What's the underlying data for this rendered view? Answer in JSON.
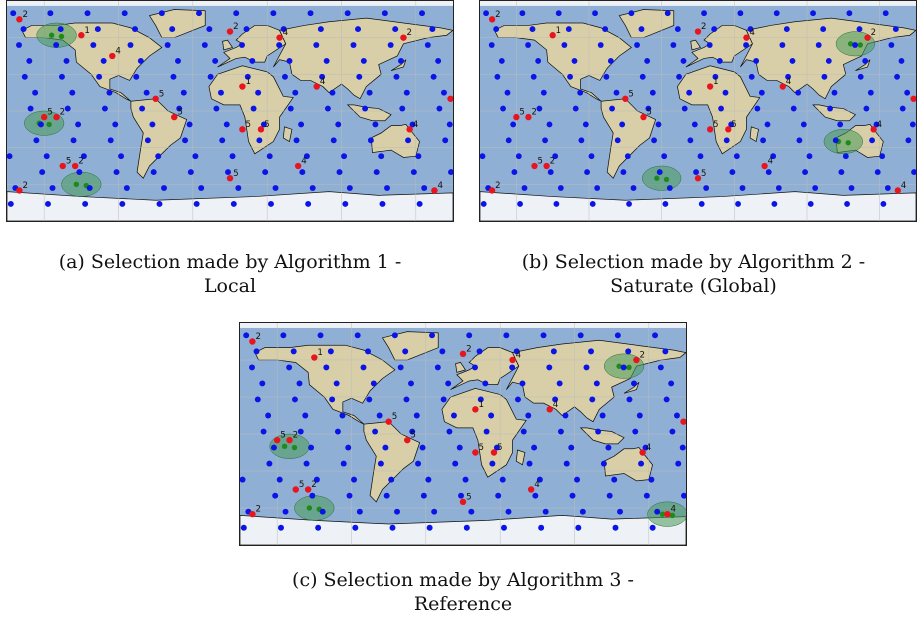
{
  "figure": {
    "panels": [
      {
        "id": "a",
        "caption_line1": "(a) Selection made by Algorithm 1 -",
        "caption_line2": "Local",
        "markers": [
          {
            "lon": -170,
            "lat": 75,
            "label": "2"
          },
          {
            "lon": -120,
            "lat": 62,
            "label": "1"
          },
          {
            "lon": -95,
            "lat": 45,
            "label": "4"
          },
          {
            "lon": -60,
            "lat": 10,
            "label": "5"
          },
          {
            "lon": -45,
            "lat": -5,
            "label": "5"
          },
          {
            "lon": -150,
            "lat": -5,
            "label": "5"
          },
          {
            "lon": -140,
            "lat": -5,
            "label": "2"
          },
          {
            "lon": -135,
            "lat": -45,
            "label": "5"
          },
          {
            "lon": -125,
            "lat": -45,
            "label": "2"
          },
          {
            "lon": -170,
            "lat": -65,
            "label": "2"
          },
          {
            "lon": 0,
            "lat": 65,
            "label": "2"
          },
          {
            "lon": 40,
            "lat": 60,
            "label": "4"
          },
          {
            "lon": 10,
            "lat": 20,
            "label": "1"
          },
          {
            "lon": 10,
            "lat": -15,
            "label": "5"
          },
          {
            "lon": 25,
            "lat": -15,
            "label": "5"
          },
          {
            "lon": 70,
            "lat": 20,
            "label": "4"
          },
          {
            "lon": 140,
            "lat": 60,
            "label": "2"
          },
          {
            "lon": 178,
            "lat": 10,
            "label": "2"
          },
          {
            "lon": 145,
            "lat": -15,
            "label": "4"
          },
          {
            "lon": 55,
            "lat": -45,
            "label": "4"
          },
          {
            "lon": 0,
            "lat": -55,
            "label": "5"
          },
          {
            "lon": 165,
            "lat": -65,
            "label": "4"
          }
        ],
        "green_regions": [
          {
            "lon": -140,
            "lat": 62,
            "label": ""
          },
          {
            "lon": -150,
            "lat": -10,
            "label": ""
          },
          {
            "lon": -120,
            "lat": -60,
            "label": ""
          }
        ]
      },
      {
        "id": "b",
        "caption_line1": "(b) Selection made by Algorithm 2 -",
        "caption_line2": "Saturate (Global)",
        "markers": [
          {
            "lon": -170,
            "lat": 75,
            "label": "2"
          },
          {
            "lon": -120,
            "lat": 62,
            "label": "1"
          },
          {
            "lon": -60,
            "lat": 10,
            "label": "5"
          },
          {
            "lon": -45,
            "lat": -5,
            "label": "5"
          },
          {
            "lon": -150,
            "lat": -5,
            "label": "5"
          },
          {
            "lon": -140,
            "lat": -5,
            "label": "2"
          },
          {
            "lon": -135,
            "lat": -45,
            "label": "5"
          },
          {
            "lon": -125,
            "lat": -45,
            "label": "2"
          },
          {
            "lon": -170,
            "lat": -65,
            "label": "2"
          },
          {
            "lon": 0,
            "lat": 65,
            "label": "2"
          },
          {
            "lon": 40,
            "lat": 60,
            "label": "4"
          },
          {
            "lon": 10,
            "lat": 20,
            "label": "1"
          },
          {
            "lon": 10,
            "lat": -15,
            "label": "5"
          },
          {
            "lon": 25,
            "lat": -15,
            "label": "5"
          },
          {
            "lon": 70,
            "lat": 20,
            "label": "4"
          },
          {
            "lon": 140,
            "lat": 60,
            "label": "2"
          },
          {
            "lon": 178,
            "lat": 10,
            "label": "2"
          },
          {
            "lon": 145,
            "lat": -15,
            "label": "4"
          },
          {
            "lon": 55,
            "lat": -45,
            "label": "4"
          },
          {
            "lon": 0,
            "lat": -55,
            "label": "5"
          },
          {
            "lon": 165,
            "lat": -65,
            "label": "4"
          }
        ],
        "green_regions": [
          {
            "lon": 130,
            "lat": 55,
            "label": ""
          },
          {
            "lon": 120,
            "lat": -25,
            "label": ""
          },
          {
            "lon": -30,
            "lat": -55,
            "label": ""
          }
        ]
      },
      {
        "id": "c",
        "caption_line1": "(c) Selection made by Algorithm 3 -",
        "caption_line2": "Reference",
        "markers": [
          {
            "lon": -170,
            "lat": 75,
            "label": "2"
          },
          {
            "lon": -120,
            "lat": 62,
            "label": "1"
          },
          {
            "lon": -60,
            "lat": 10,
            "label": "5"
          },
          {
            "lon": -45,
            "lat": -5,
            "label": "5"
          },
          {
            "lon": -150,
            "lat": -5,
            "label": "5"
          },
          {
            "lon": -140,
            "lat": -5,
            "label": "2"
          },
          {
            "lon": -135,
            "lat": -45,
            "label": "5"
          },
          {
            "lon": -125,
            "lat": -45,
            "label": "2"
          },
          {
            "lon": -170,
            "lat": -65,
            "label": "2"
          },
          {
            "lon": 0,
            "lat": 65,
            "label": "2"
          },
          {
            "lon": 40,
            "lat": 60,
            "label": "4"
          },
          {
            "lon": 10,
            "lat": 20,
            "label": "1"
          },
          {
            "lon": 10,
            "lat": -15,
            "label": "5"
          },
          {
            "lon": 25,
            "lat": -15,
            "label": "5"
          },
          {
            "lon": 70,
            "lat": 20,
            "label": "4"
          },
          {
            "lon": 140,
            "lat": 60,
            "label": "2"
          },
          {
            "lon": 178,
            "lat": 10,
            "label": "2"
          },
          {
            "lon": 145,
            "lat": -15,
            "label": "4"
          },
          {
            "lon": 55,
            "lat": -45,
            "label": "4"
          },
          {
            "lon": 0,
            "lat": -55,
            "label": "5"
          },
          {
            "lon": 165,
            "lat": -65,
            "label": "4"
          }
        ],
        "green_regions": [
          {
            "lon": -140,
            "lat": -10,
            "label": ""
          },
          {
            "lon": -120,
            "lat": -60,
            "label": ""
          },
          {
            "lon": 130,
            "lat": 55,
            "label": ""
          },
          {
            "lon": 165,
            "lat": -65,
            "label": ""
          }
        ]
      }
    ],
    "colors": {
      "ocean": "#8fb0d4",
      "land": "#d8cfa8",
      "land_green": "#9fbf7a",
      "ice": "#eef2f6",
      "blue_point": "#0a14e6",
      "red_point": "#e8141e",
      "green_point": "#1e8a1e",
      "green_region": "#4a9a5a"
    }
  }
}
